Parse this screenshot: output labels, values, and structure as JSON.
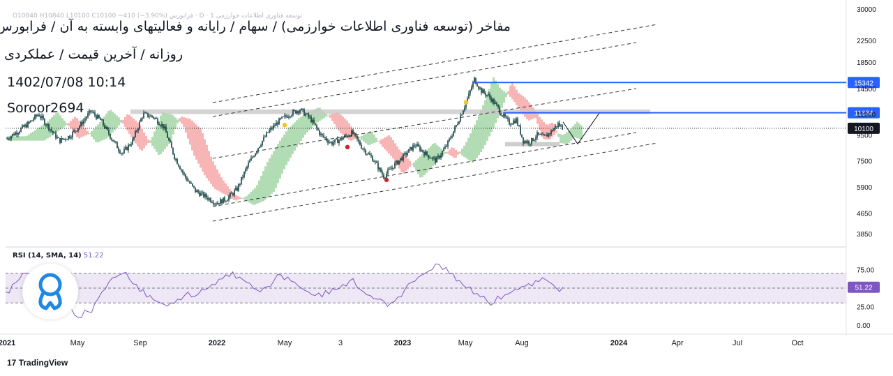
{
  "header": {
    "title_line1": "مفاخر (توسعه فناوری اطلاعات خوارزمی) / سهام / رایانه و فعالیتهای وابسته به آن / فرابورس",
    "title_line2": "روزانه / آخرین قیمت / عملکردی",
    "datetime": "1402/07/08 10:14",
    "author": "Soroor2694",
    "ohlc_text": "توسعه فناوری اطلاعات خوارزمی 1 · D · فرابورس  O10840 H10840 L10100 C10100 −410 (−3.90%)"
  },
  "brand": "TradingView",
  "colors": {
    "candle": "#0d3b3b",
    "cloud_bull": "#a5d6a7",
    "cloud_bear": "#f7a8a8",
    "channel": "#333333",
    "level_line": "#2962ff",
    "resistance_zone": "#c8c8c8",
    "rsi_line": "#7e57c2",
    "rsi_band": "#ede7f6"
  },
  "chart_data": [
    {
      "type": "candlestick",
      "price_axis_ticks": [
        30000,
        22500,
        18500,
        14500,
        11500,
        9500,
        7500,
        5900,
        4650,
        3850
      ],
      "scale": "log",
      "ylim": [
        3500,
        31000
      ],
      "time_axis_ticks": [
        "2021",
        "May",
        "Sep",
        "2022",
        "May",
        "3",
        "2023",
        "May",
        "Aug",
        "2024",
        "Apr",
        "Jul",
        "Oct"
      ],
      "last_price": 10100,
      "horizontal_levels": [
        15342,
        11634
      ],
      "resistance_zone": [
        11500,
        12000
      ],
      "support_zone": [
        8700,
        8900
      ],
      "price_path": [
        [
          0,
          9200
        ],
        [
          15,
          9800
        ],
        [
          30,
          10500
        ],
        [
          45,
          11500
        ],
        [
          60,
          10200
        ],
        [
          75,
          9000
        ],
        [
          90,
          9400
        ],
        [
          105,
          10400
        ],
        [
          120,
          11800
        ],
        [
          135,
          10800
        ],
        [
          150,
          9200
        ],
        [
          165,
          8000
        ],
        [
          180,
          9000
        ],
        [
          195,
          11500
        ],
        [
          210,
          11200
        ],
        [
          225,
          10200
        ],
        [
          240,
          7800
        ],
        [
          255,
          6500
        ],
        [
          270,
          5700
        ],
        [
          285,
          5400
        ],
        [
          300,
          5100
        ],
        [
          315,
          5300
        ],
        [
          330,
          5800
        ],
        [
          345,
          7200
        ],
        [
          360,
          8500
        ],
        [
          375,
          9800
        ],
        [
          390,
          10800
        ],
        [
          405,
          11500
        ],
        [
          420,
          12000
        ],
        [
          435,
          11000
        ],
        [
          450,
          9500
        ],
        [
          465,
          8800
        ],
        [
          480,
          9200
        ],
        [
          495,
          9700
        ],
        [
          510,
          8400
        ],
        [
          525,
          7600
        ],
        [
          540,
          6500
        ],
        [
          555,
          7200
        ],
        [
          570,
          7900
        ],
        [
          585,
          8700
        ],
        [
          600,
          8000
        ],
        [
          615,
          7500
        ],
        [
          630,
          8600
        ],
        [
          645,
          10500
        ],
        [
          660,
          13200
        ],
        [
          670,
          15800
        ],
        [
          680,
          14200
        ],
        [
          690,
          13600
        ],
        [
          700,
          12600
        ],
        [
          710,
          11400
        ],
        [
          720,
          10600
        ],
        [
          730,
          10900
        ],
        [
          740,
          9000
        ],
        [
          750,
          8900
        ],
        [
          760,
          9500
        ],
        [
          770,
          9300
        ],
        [
          780,
          9800
        ],
        [
          790,
          10500
        ],
        [
          797,
          10100
        ]
      ],
      "projection_path": [
        [
          797,
          10700
        ],
        [
          818,
          8750
        ],
        [
          850,
          11700
        ]
      ],
      "markers": [
        {
          "color": "#f5c518",
          "at": [
            398,
            10400
          ]
        },
        {
          "color": "#c62828",
          "at": [
            488,
            8500
          ]
        },
        {
          "color": "#c62828",
          "at": [
            544,
            6300
          ]
        },
        {
          "color": "#f5c518",
          "at": [
            658,
            12800
          ]
        }
      ]
    },
    {
      "type": "line",
      "title": "RSI (14, SMA, 14)",
      "value_label": "51.22",
      "y_ticks": [
        75.0,
        50.0,
        25.0,
        0.0
      ],
      "y_tick_labels": [
        "75.00",
        "50.00",
        "25.00",
        "0.00"
      ],
      "ylim": [
        0,
        100
      ],
      "band": [
        30,
        70
      ],
      "last_value": 51.22,
      "series": [
        {
          "values": [
            45,
            55,
            62,
            70,
            60,
            52,
            40,
            35,
            28,
            20,
            14,
            10,
            18,
            30,
            45,
            58,
            65,
            70,
            62,
            55,
            48,
            40,
            32,
            28,
            30,
            35,
            40,
            38,
            42,
            48,
            55,
            62,
            68,
            72,
            65,
            58,
            50,
            45,
            52,
            60,
            68,
            65,
            58,
            50,
            45,
            40,
            38,
            42,
            48,
            55,
            60,
            52,
            45,
            40,
            35,
            32,
            30,
            38,
            48,
            58,
            65,
            70,
            75,
            82,
            78,
            70,
            60,
            50,
            42,
            38,
            32,
            30,
            35,
            42,
            48,
            52,
            56,
            60,
            64,
            58,
            50,
            51.22
          ]
        }
      ]
    }
  ]
}
